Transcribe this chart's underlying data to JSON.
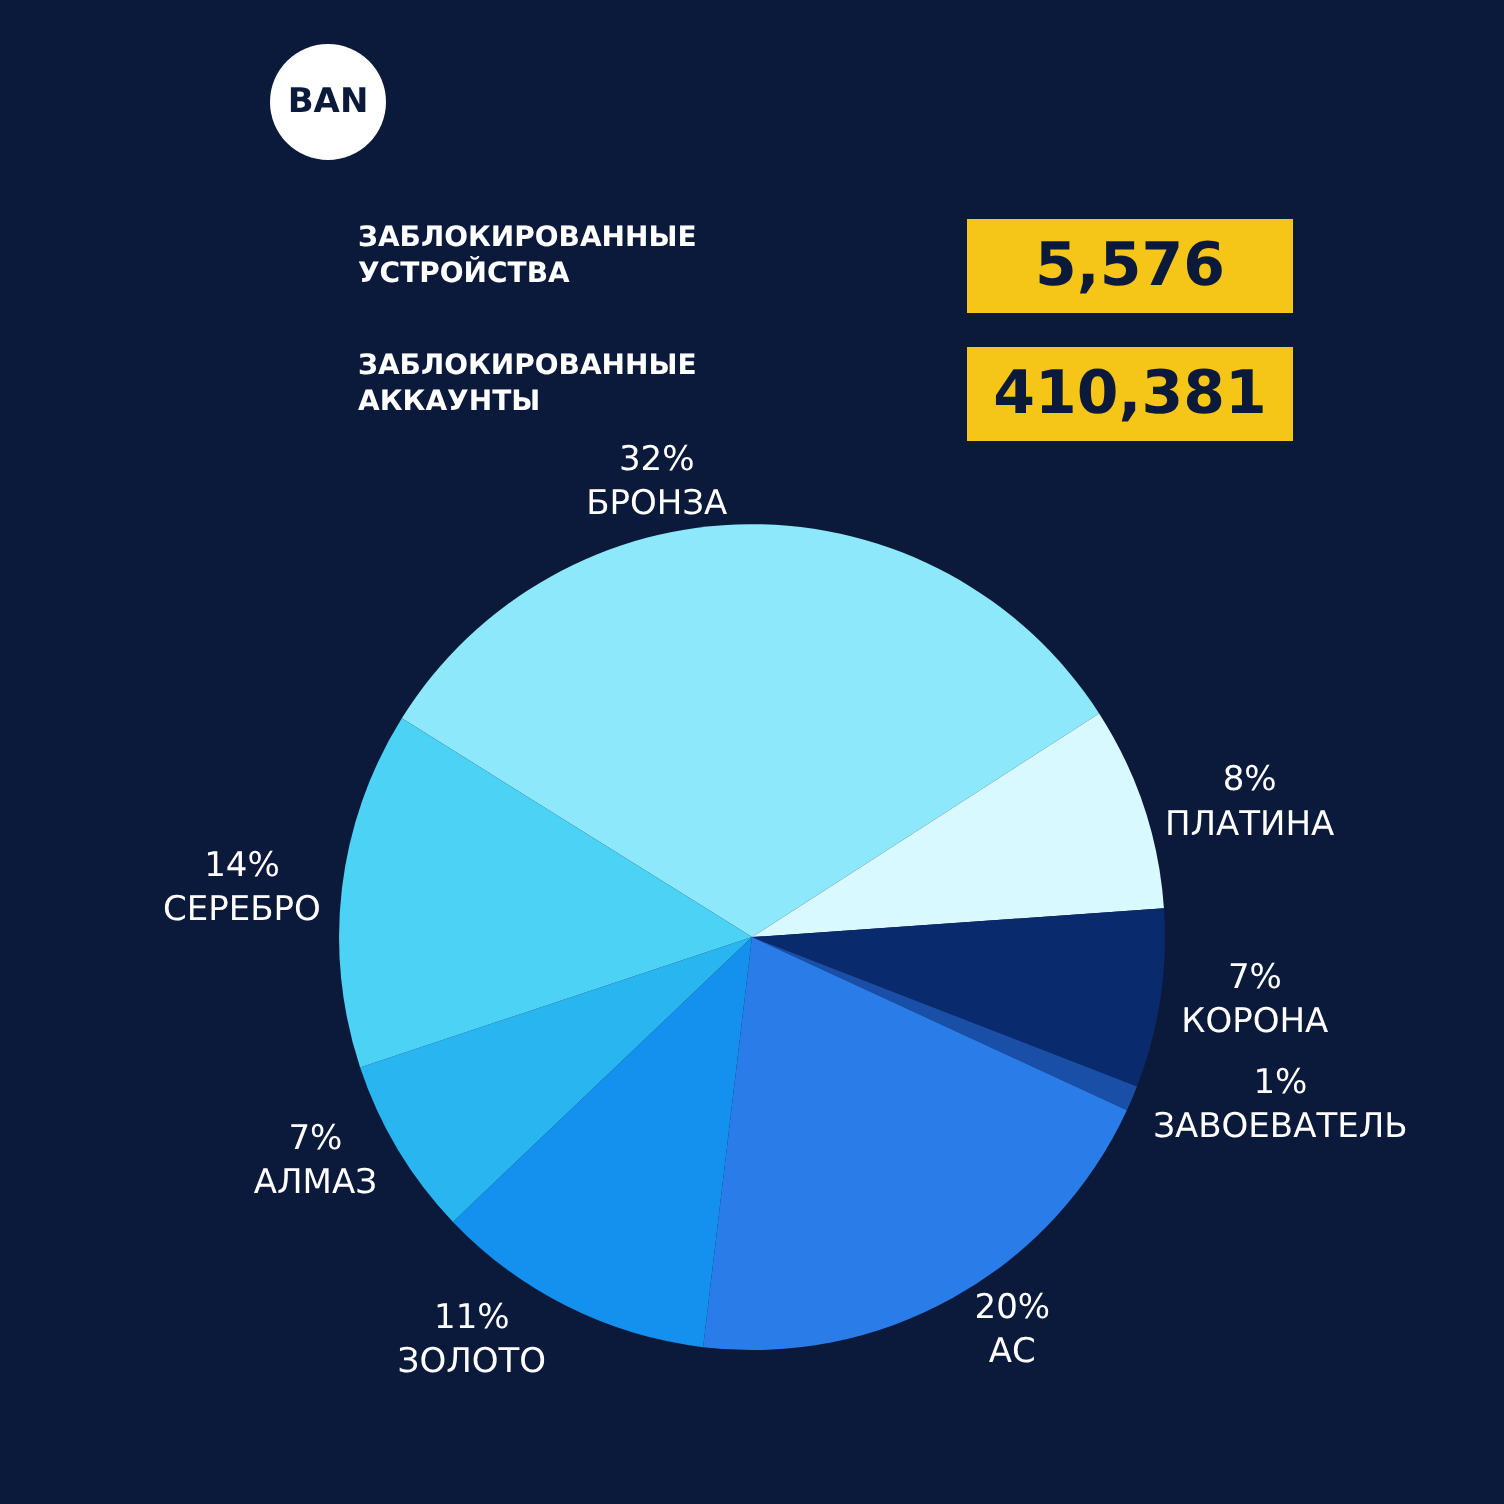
{
  "chart_data": {
    "type": "pie",
    "categories": [
      "БРОНЗА",
      "ПЛАТИНА",
      "КОРОНА",
      "ЗАВОЕВАТЕЛЬ",
      "АС",
      "ЗОЛОТО",
      "АЛМАЗ",
      "СЕРЕБРО"
    ],
    "values": [
      32,
      8,
      7,
      1,
      20,
      11,
      7,
      14
    ],
    "colors": [
      "#8ee8fb",
      "#d8f9ff",
      "#0a2a6e",
      "#1a4fa8",
      "#2a7de8",
      "#1490ee",
      "#29b5f0",
      "#4cd2f5"
    ],
    "value_labels": [
      "32%",
      "8%",
      "7%",
      "1%",
      "20%",
      "11%",
      "7%",
      "14%"
    ],
    "annotations": [
      "BAN",
      "ЗАБЛОКИРОВАННЫЕ УСТРОЙСТВА",
      "5,576",
      "ЗАБЛОКИРОВАННЫЕ АККАУНТЫ",
      "410,381"
    ],
    "legend": false
  }
}
